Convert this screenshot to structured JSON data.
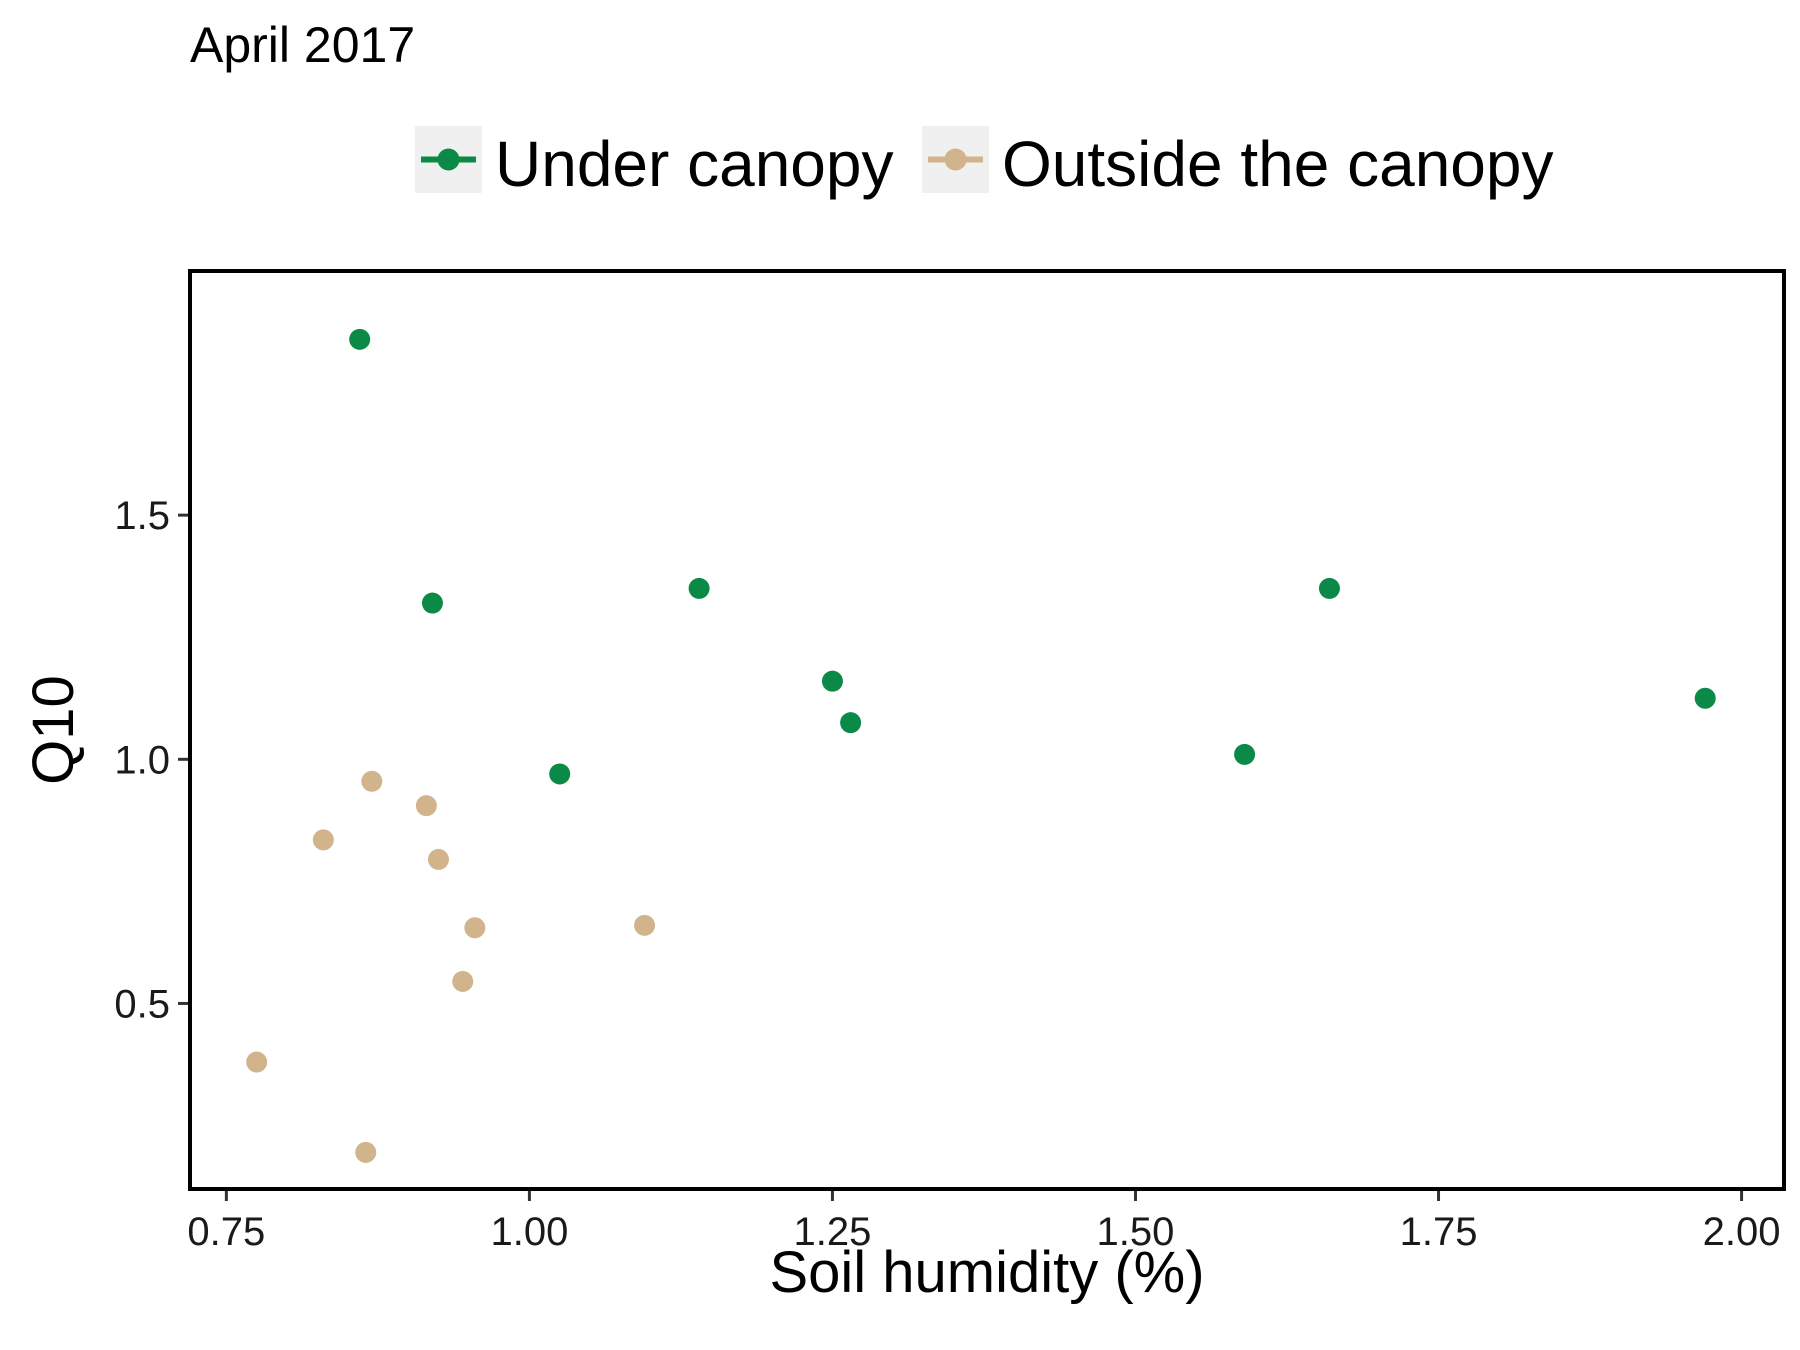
{
  "chart_data": {
    "type": "scatter",
    "title": "April 2017",
    "xlabel": "Soil humidity (%)",
    "ylabel": "Q10",
    "xlim": [
      0.72,
      2.035
    ],
    "ylim": [
      0.12,
      2.0
    ],
    "x_ticks": [
      0.75,
      1.0,
      1.25,
      1.5,
      1.75,
      2.0
    ],
    "x_tick_labels": [
      "0.75",
      "1.00",
      "1.25",
      "1.50",
      "1.75",
      "2.00"
    ],
    "y_ticks": [
      0.5,
      1.0,
      1.5
    ],
    "y_tick_labels": [
      "0.5",
      "1.0",
      "1.5"
    ],
    "grid": false,
    "legend_position": "top",
    "series": [
      {
        "name": "Under canopy",
        "color": "#0b8a47",
        "points": [
          {
            "x": 0.86,
            "y": 1.86
          },
          {
            "x": 0.92,
            "y": 1.32
          },
          {
            "x": 1.025,
            "y": 0.97
          },
          {
            "x": 1.14,
            "y": 1.35
          },
          {
            "x": 1.25,
            "y": 1.16
          },
          {
            "x": 1.265,
            "y": 1.075
          },
          {
            "x": 1.59,
            "y": 1.01
          },
          {
            "x": 1.66,
            "y": 1.35
          },
          {
            "x": 1.97,
            "y": 1.125
          }
        ]
      },
      {
        "name": "Outside the canopy",
        "color": "#d2b48c",
        "points": [
          {
            "x": 0.775,
            "y": 0.38
          },
          {
            "x": 0.83,
            "y": 0.835
          },
          {
            "x": 0.865,
            "y": 0.195
          },
          {
            "x": 0.87,
            "y": 0.955
          },
          {
            "x": 0.915,
            "y": 0.905
          },
          {
            "x": 0.925,
            "y": 0.795
          },
          {
            "x": 0.945,
            "y": 0.545
          },
          {
            "x": 0.955,
            "y": 0.655
          },
          {
            "x": 1.095,
            "y": 0.66
          }
        ]
      }
    ]
  }
}
